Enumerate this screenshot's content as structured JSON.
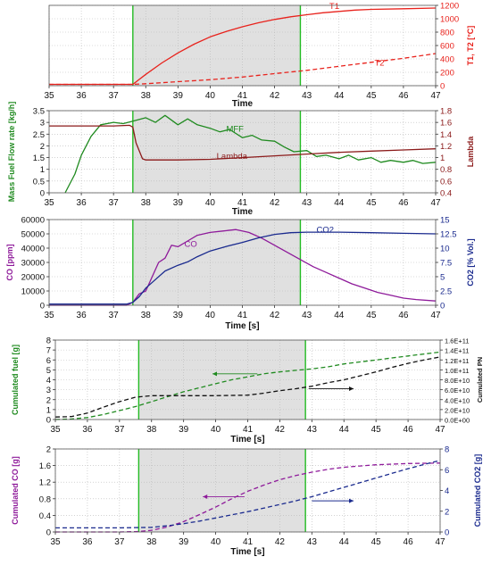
{
  "colors": {
    "red": "#e8221c",
    "green": "#1f8a1f",
    "darkred": "#8b1a1a",
    "purple": "#8e1a9a",
    "navy": "#1a2a8e",
    "black": "#111111",
    "marker": "#22bb22",
    "shade": "#e0e0e0"
  },
  "chart_data": [
    {
      "id": "temps",
      "type": "line",
      "xlabel": "Time",
      "ylabel_right": "T1, T2 [°C]",
      "xlim": [
        35,
        47
      ],
      "xticks": [
        35,
        36,
        37,
        38,
        39,
        40,
        41,
        42,
        43,
        44,
        45,
        46,
        47
      ],
      "ylim_right": [
        0,
        1200
      ],
      "yticks_right": [
        0,
        200,
        400,
        600,
        800,
        1000,
        1200
      ],
      "shaded_region": [
        37.6,
        42.8
      ],
      "series": [
        {
          "name": "T1",
          "axis": "right",
          "color": "red",
          "dash": "solid",
          "label_at": [
            43.7,
            1150
          ],
          "x": [
            35,
            36,
            37,
            37.6,
            38,
            38.5,
            39,
            39.5,
            40,
            40.5,
            41,
            41.5,
            42,
            42.5,
            43,
            43.5,
            44,
            44.5,
            45,
            46,
            47
          ],
          "y": [
            20,
            20,
            20,
            20,
            170,
            340,
            490,
            620,
            730,
            810,
            880,
            940,
            990,
            1030,
            1060,
            1090,
            1110,
            1130,
            1140,
            1150,
            1160
          ]
        },
        {
          "name": "T2",
          "axis": "right",
          "color": "red",
          "dash": "dashed",
          "label_at": [
            45.1,
            300
          ],
          "x": [
            35,
            37.6,
            38,
            39,
            40,
            41,
            42,
            43,
            44,
            45,
            46,
            47
          ],
          "y": [
            20,
            20,
            30,
            60,
            90,
            130,
            180,
            230,
            290,
            350,
            410,
            480
          ]
        }
      ]
    },
    {
      "id": "mff_lambda",
      "type": "line",
      "xlabel": "Time",
      "ylabel_left": "Mass Fuel Flow rate [kg/h]",
      "ylabel_right": "Lambda",
      "xlim": [
        35,
        47
      ],
      "xticks": [
        35,
        36,
        37,
        38,
        39,
        40,
        41,
        42,
        43,
        44,
        45,
        46,
        47
      ],
      "ylim_left": [
        0,
        3.5
      ],
      "yticks_left": [
        0.0,
        0.5,
        1.0,
        1.5,
        2.0,
        2.5,
        3.0,
        3.5
      ],
      "ylim_right": [
        0.4,
        1.8
      ],
      "yticks_right": [
        0.4,
        0.6,
        0.8,
        1.0,
        1.2,
        1.4,
        1.6,
        1.8
      ],
      "shaded_region": [
        37.6,
        42.8
      ],
      "series": [
        {
          "name": "MFF",
          "axis": "left",
          "color": "green",
          "dash": "solid",
          "label_at": [
            40.5,
            2.6
          ],
          "x": [
            35.5,
            35.8,
            36.0,
            36.3,
            36.6,
            37.0,
            37.3,
            37.6,
            38.0,
            38.3,
            38.6,
            39.0,
            39.3,
            39.6,
            40.0,
            40.3,
            40.6,
            41.0,
            41.3,
            41.6,
            42.0,
            42.3,
            42.6,
            43.0,
            43.3,
            43.6,
            44.0,
            44.3,
            44.6,
            45.0,
            45.3,
            45.6,
            46.0,
            46.3,
            46.6,
            47.0
          ],
          "y": [
            0.0,
            0.8,
            1.6,
            2.4,
            2.9,
            3.0,
            2.95,
            3.05,
            3.2,
            3.0,
            3.3,
            2.9,
            3.15,
            2.9,
            2.75,
            2.6,
            2.7,
            2.35,
            2.45,
            2.25,
            2.2,
            1.95,
            1.75,
            1.8,
            1.55,
            1.6,
            1.45,
            1.6,
            1.4,
            1.5,
            1.3,
            1.38,
            1.3,
            1.38,
            1.25,
            1.3
          ]
        },
        {
          "name": "Lambda",
          "axis": "right",
          "color": "darkred",
          "dash": "solid",
          "label_at": [
            40.2,
            0.98
          ],
          "x": [
            35,
            36,
            37,
            37.5,
            37.6,
            37.7,
            37.9,
            38.0,
            39,
            40,
            41,
            42,
            43,
            44,
            45,
            46,
            47
          ],
          "y": [
            1.54,
            1.54,
            1.54,
            1.55,
            1.52,
            1.25,
            0.98,
            0.96,
            0.96,
            0.97,
            1.0,
            1.03,
            1.06,
            1.09,
            1.11,
            1.13,
            1.15
          ]
        }
      ]
    },
    {
      "id": "co_co2",
      "type": "line",
      "xlabel": "Time [s]",
      "ylabel_left": "CO [ppm]",
      "ylabel_right": "CO2 [% Vol.]",
      "xlim": [
        35,
        47
      ],
      "xticks": [
        35,
        36,
        37,
        38,
        39,
        40,
        41,
        42,
        43,
        44,
        45,
        46,
        47
      ],
      "ylim_left": [
        0,
        60000
      ],
      "yticks_left": [
        0,
        10000,
        20000,
        30000,
        40000,
        50000,
        60000
      ],
      "ylim_right": [
        0,
        15
      ],
      "yticks_right": [
        0.0,
        2.5,
        5.0,
        7.5,
        10.0,
        12.5,
        15.0
      ],
      "shaded_region": [
        37.6,
        42.8
      ],
      "series": [
        {
          "name": "CO",
          "axis": "left",
          "color": "purple",
          "dash": "solid",
          "label_at": [
            39.2,
            41000
          ],
          "x": [
            35,
            37.4,
            37.6,
            37.8,
            38.0,
            38.2,
            38.4,
            38.6,
            38.8,
            39.0,
            39.3,
            39.6,
            40.0,
            40.4,
            40.8,
            41.2,
            41.6,
            42.0,
            42.4,
            42.8,
            43.2,
            43.6,
            44.0,
            44.4,
            44.8,
            45.2,
            45.6,
            46.0,
            46.4,
            47.0
          ],
          "y": [
            0,
            0,
            2000,
            8000,
            10000,
            20000,
            30000,
            33000,
            42000,
            41000,
            45000,
            49000,
            51000,
            52000,
            53000,
            51000,
            47000,
            42000,
            37000,
            32000,
            27000,
            23000,
            19000,
            15000,
            12000,
            9000,
            7000,
            5000,
            4000,
            3000
          ]
        },
        {
          "name": "CO2",
          "axis": "right",
          "color": "navy",
          "dash": "solid",
          "label_at": [
            43.3,
            12.7
          ],
          "x": [
            35,
            37.4,
            37.6,
            37.8,
            38.0,
            38.3,
            38.6,
            39.0,
            39.3,
            39.6,
            40.0,
            40.5,
            41.0,
            41.5,
            42.0,
            42.5,
            43.0,
            43.5,
            44.0,
            45.0,
            46.0,
            47.0
          ],
          "y": [
            0.2,
            0.2,
            0.5,
            1.5,
            3.0,
            4.5,
            6.0,
            7.0,
            7.6,
            8.5,
            9.5,
            10.3,
            11.0,
            11.8,
            12.4,
            12.7,
            12.8,
            12.8,
            12.8,
            12.7,
            12.6,
            12.5
          ]
        }
      ]
    },
    {
      "id": "cum_fuel_pn",
      "type": "line",
      "xlabel": "Time [s]",
      "ylabel_left": "Cumulated fuel [g]",
      "ylabel_right": "Cumulated PN",
      "xlim": [
        35,
        47
      ],
      "xticks": [
        35,
        36,
        37,
        38,
        39,
        40,
        41,
        42,
        43,
        44,
        45,
        46,
        47
      ],
      "ylim_left": [
        0,
        8
      ],
      "yticks_left": [
        0,
        1,
        2,
        3,
        4,
        5,
        6,
        7,
        8
      ],
      "ylim_right": [
        0,
        160000000000.0
      ],
      "yticks_right": [
        "0.0E+00",
        "2.0E+10",
        "4.0E+10",
        "6.0E+10",
        "8.0E+10",
        "1.0E+11",
        "1.2E+11",
        "1.4E+11",
        "1.6E+11"
      ],
      "shaded_region": [
        37.6,
        42.8
      ],
      "annotations": [
        {
          "type": "arrow",
          "color": "green",
          "from": [
            41.3,
            4.6
          ],
          "to": [
            39.9,
            4.6
          ]
        },
        {
          "type": "arrow",
          "color": "black",
          "from": [
            42.9,
            3.1
          ],
          "to": [
            44.3,
            3.1
          ]
        }
      ],
      "series": [
        {
          "name": "Cumulated fuel",
          "axis": "left",
          "color": "green",
          "dash": "dashed",
          "x": [
            35,
            35.5,
            36,
            36.5,
            37,
            37.5,
            38,
            38.5,
            39,
            39.5,
            40,
            40.5,
            41,
            41.5,
            42,
            42.5,
            43,
            43.5,
            44,
            44.5,
            45,
            45.5,
            46,
            46.5,
            47
          ],
          "y": [
            0,
            0.05,
            0.2,
            0.5,
            0.9,
            1.3,
            1.8,
            2.3,
            2.8,
            3.2,
            3.6,
            4.0,
            4.3,
            4.6,
            4.8,
            4.95,
            5.1,
            5.3,
            5.6,
            5.8,
            6.0,
            6.2,
            6.4,
            6.6,
            6.8
          ]
        },
        {
          "name": "Cumulated PN",
          "axis": "right",
          "color": "black",
          "dash": "dashed",
          "x": [
            35,
            35.5,
            36,
            36.5,
            37,
            37.5,
            38,
            39,
            40,
            41,
            41.5,
            42,
            42.5,
            43,
            43.5,
            44,
            44.5,
            45,
            45.5,
            46,
            46.5,
            47
          ],
          "y": [
            5000000000.0,
            6000000000.0,
            13000000000.0,
            25000000000.0,
            36000000000.0,
            45000000000.0,
            48000000000.0,
            48000000000.0,
            48000000000.0,
            49000000000.0,
            53000000000.0,
            58000000000.0,
            62000000000.0,
            67000000000.0,
            74000000000.0,
            80000000000.0,
            88000000000.0,
            96000000000.0,
            105000000000.0,
            113000000000.0,
            120000000000.0,
            126000000000.0
          ]
        }
      ]
    },
    {
      "id": "cum_co_co2",
      "type": "line",
      "xlabel": "Time [s]",
      "ylabel_left": "Cumulated CO [g]",
      "ylabel_right": "Cumulated CO2 [g]",
      "xlim": [
        35,
        47
      ],
      "xticks": [
        35,
        36,
        37,
        38,
        39,
        40,
        41,
        42,
        43,
        44,
        45,
        46,
        47
      ],
      "ylim_left": [
        0,
        2.0
      ],
      "yticks_left": [
        0.0,
        0.4,
        0.8,
        1.2,
        1.6,
        2.0
      ],
      "ylim_right": [
        0,
        8
      ],
      "yticks_right": [
        0,
        2,
        4,
        6,
        8
      ],
      "shaded_region": [
        37.6,
        42.8
      ],
      "annotations": [
        {
          "type": "arrow",
          "color": "purple",
          "from": [
            40.9,
            0.85
          ],
          "to": [
            39.6,
            0.85
          ]
        },
        {
          "type": "arrow",
          "color": "navy",
          "from": [
            43.0,
            0.75
          ],
          "to": [
            44.3,
            0.75
          ]
        }
      ],
      "series": [
        {
          "name": "Cumulated CO",
          "axis": "left",
          "color": "purple",
          "dash": "dashed",
          "x": [
            35,
            36,
            37,
            37.6,
            38,
            38.5,
            39,
            39.5,
            40,
            40.5,
            41,
            41.5,
            42,
            42.5,
            43,
            43.5,
            44,
            45,
            46,
            47
          ],
          "y": [
            0,
            0,
            0,
            0.01,
            0.04,
            0.12,
            0.25,
            0.42,
            0.6,
            0.8,
            0.98,
            1.13,
            1.26,
            1.36,
            1.44,
            1.51,
            1.56,
            1.62,
            1.65,
            1.66
          ]
        },
        {
          "name": "Cumulated CO2",
          "axis": "right",
          "color": "navy",
          "dash": "dashed",
          "x": [
            35,
            36,
            37,
            38,
            38.5,
            39,
            39.5,
            40,
            40.5,
            41,
            41.5,
            42,
            42.5,
            43,
            43.5,
            44,
            44.5,
            45,
            45.5,
            46,
            46.5,
            47
          ],
          "y": [
            0.4,
            0.4,
            0.4,
            0.45,
            0.6,
            0.8,
            1.05,
            1.35,
            1.65,
            1.95,
            2.3,
            2.65,
            3.0,
            3.4,
            3.85,
            4.3,
            4.75,
            5.2,
            5.65,
            6.1,
            6.5,
            6.9
          ]
        }
      ]
    }
  ]
}
